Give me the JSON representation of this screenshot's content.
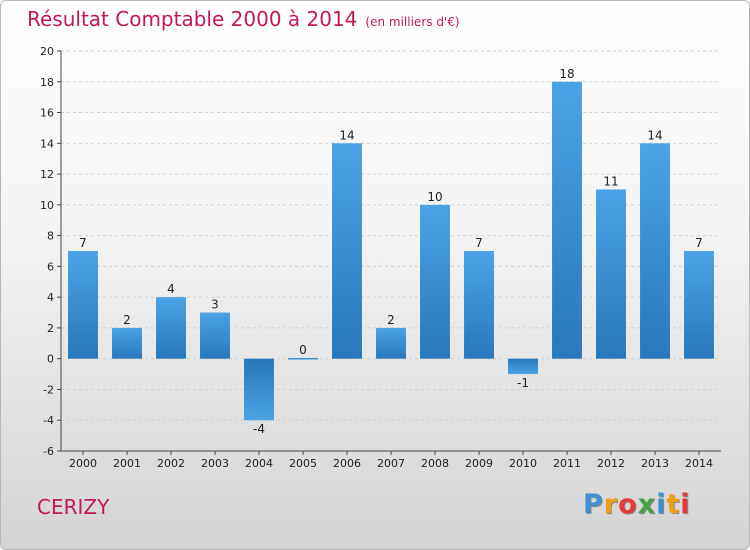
{
  "header": {
    "title": "Résultat Comptable 2000 à 2014",
    "subtitle": "(en milliers d'€)"
  },
  "footer": {
    "commune": "CERIZY",
    "brand": "Proxiti",
    "brand_colors": [
      "#3f8fd2",
      "#f39c12",
      "#e53935",
      "#43a047",
      "#3f8fd2",
      "#f39c12",
      "#e53935"
    ]
  },
  "chart_data": {
    "type": "bar",
    "title": "Résultat Comptable 2000 à 2014",
    "subtitle": "(en milliers d'€)",
    "xlabel": "",
    "ylabel": "",
    "categories": [
      "2000",
      "2001",
      "2002",
      "2003",
      "2004",
      "2005",
      "2006",
      "2007",
      "2008",
      "2009",
      "2010",
      "2011",
      "2012",
      "2013",
      "2014"
    ],
    "values": [
      7,
      2,
      4,
      3,
      -4,
      0,
      14,
      2,
      10,
      7,
      -1,
      18,
      11,
      14,
      7
    ],
    "value_labels": [
      "7",
      "2",
      "4",
      "3",
      "-4",
      "0",
      "14",
      "2",
      "10",
      "7",
      "-1",
      "18",
      "11",
      "14",
      "7"
    ],
    "ylim": [
      -6,
      20
    ],
    "yticks": [
      -6,
      -4,
      -2,
      0,
      2,
      4,
      6,
      8,
      10,
      12,
      14,
      16,
      18,
      20
    ],
    "ytick_labels": [
      "-6",
      "-4",
      "-2",
      "0",
      "2",
      "4",
      "6",
      "8",
      "10",
      "12",
      "14",
      "16",
      "18",
      "20"
    ],
    "grid": true,
    "legend": "none",
    "bar_color": "#4aa3e6",
    "bar_color_dark": "#2878bd"
  }
}
